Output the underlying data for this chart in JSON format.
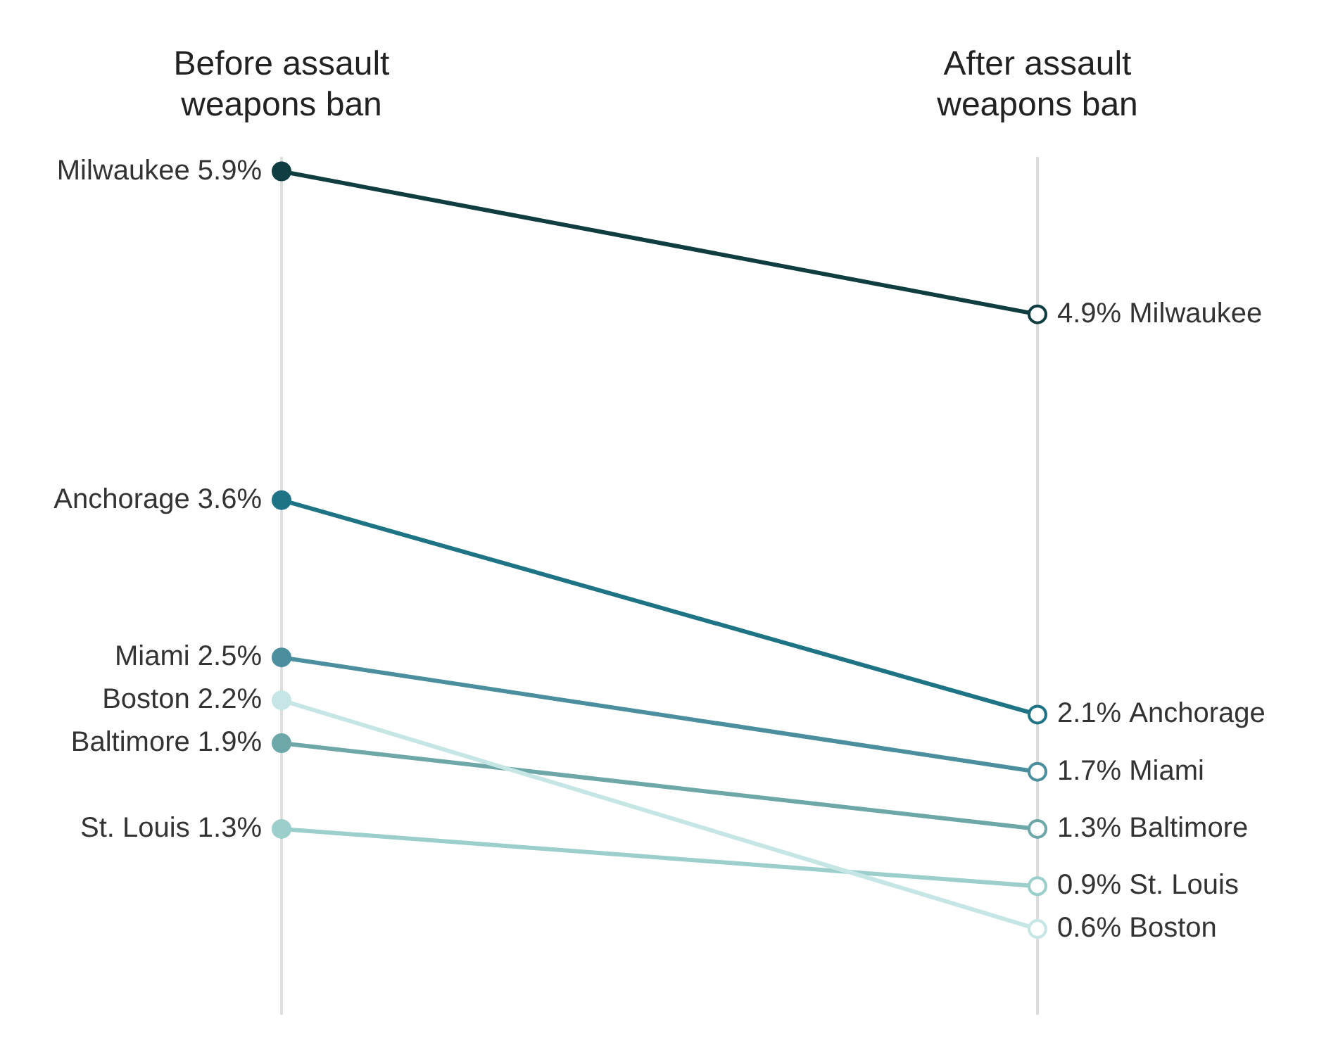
{
  "chart_data": {
    "type": "line",
    "categories": [
      "Before assault weapons ban",
      "After assault weapons ban"
    ],
    "series": [
      {
        "name": "Milwaukee",
        "color": "#0f3d40",
        "values": [
          5.9,
          4.9
        ],
        "value_labels": [
          "5.9%",
          "4.9%"
        ]
      },
      {
        "name": "Anchorage",
        "color": "#1e7385",
        "values": [
          3.6,
          2.1
        ],
        "value_labels": [
          "3.6%",
          "2.1%"
        ]
      },
      {
        "name": "Miami",
        "color": "#4b8f9e",
        "values": [
          2.5,
          1.7
        ],
        "value_labels": [
          "2.5%",
          "1.7%"
        ]
      },
      {
        "name": "Boston",
        "color": "#c5e6e4",
        "values": [
          2.2,
          0.6
        ],
        "value_labels": [
          "2.2%",
          "0.6%"
        ]
      },
      {
        "name": "Baltimore",
        "color": "#6da7a8",
        "values": [
          1.9,
          1.3
        ],
        "value_labels": [
          "1.9%",
          "1.3%"
        ]
      },
      {
        "name": "St. Louis",
        "color": "#9ccfcb",
        "values": [
          1.3,
          0.9
        ],
        "value_labels": [
          "1.3%",
          "0.9%"
        ]
      }
    ],
    "grid": "x",
    "legend": false,
    "marker": "circle",
    "line_style": "solid",
    "tick_labels": "x"
  }
}
